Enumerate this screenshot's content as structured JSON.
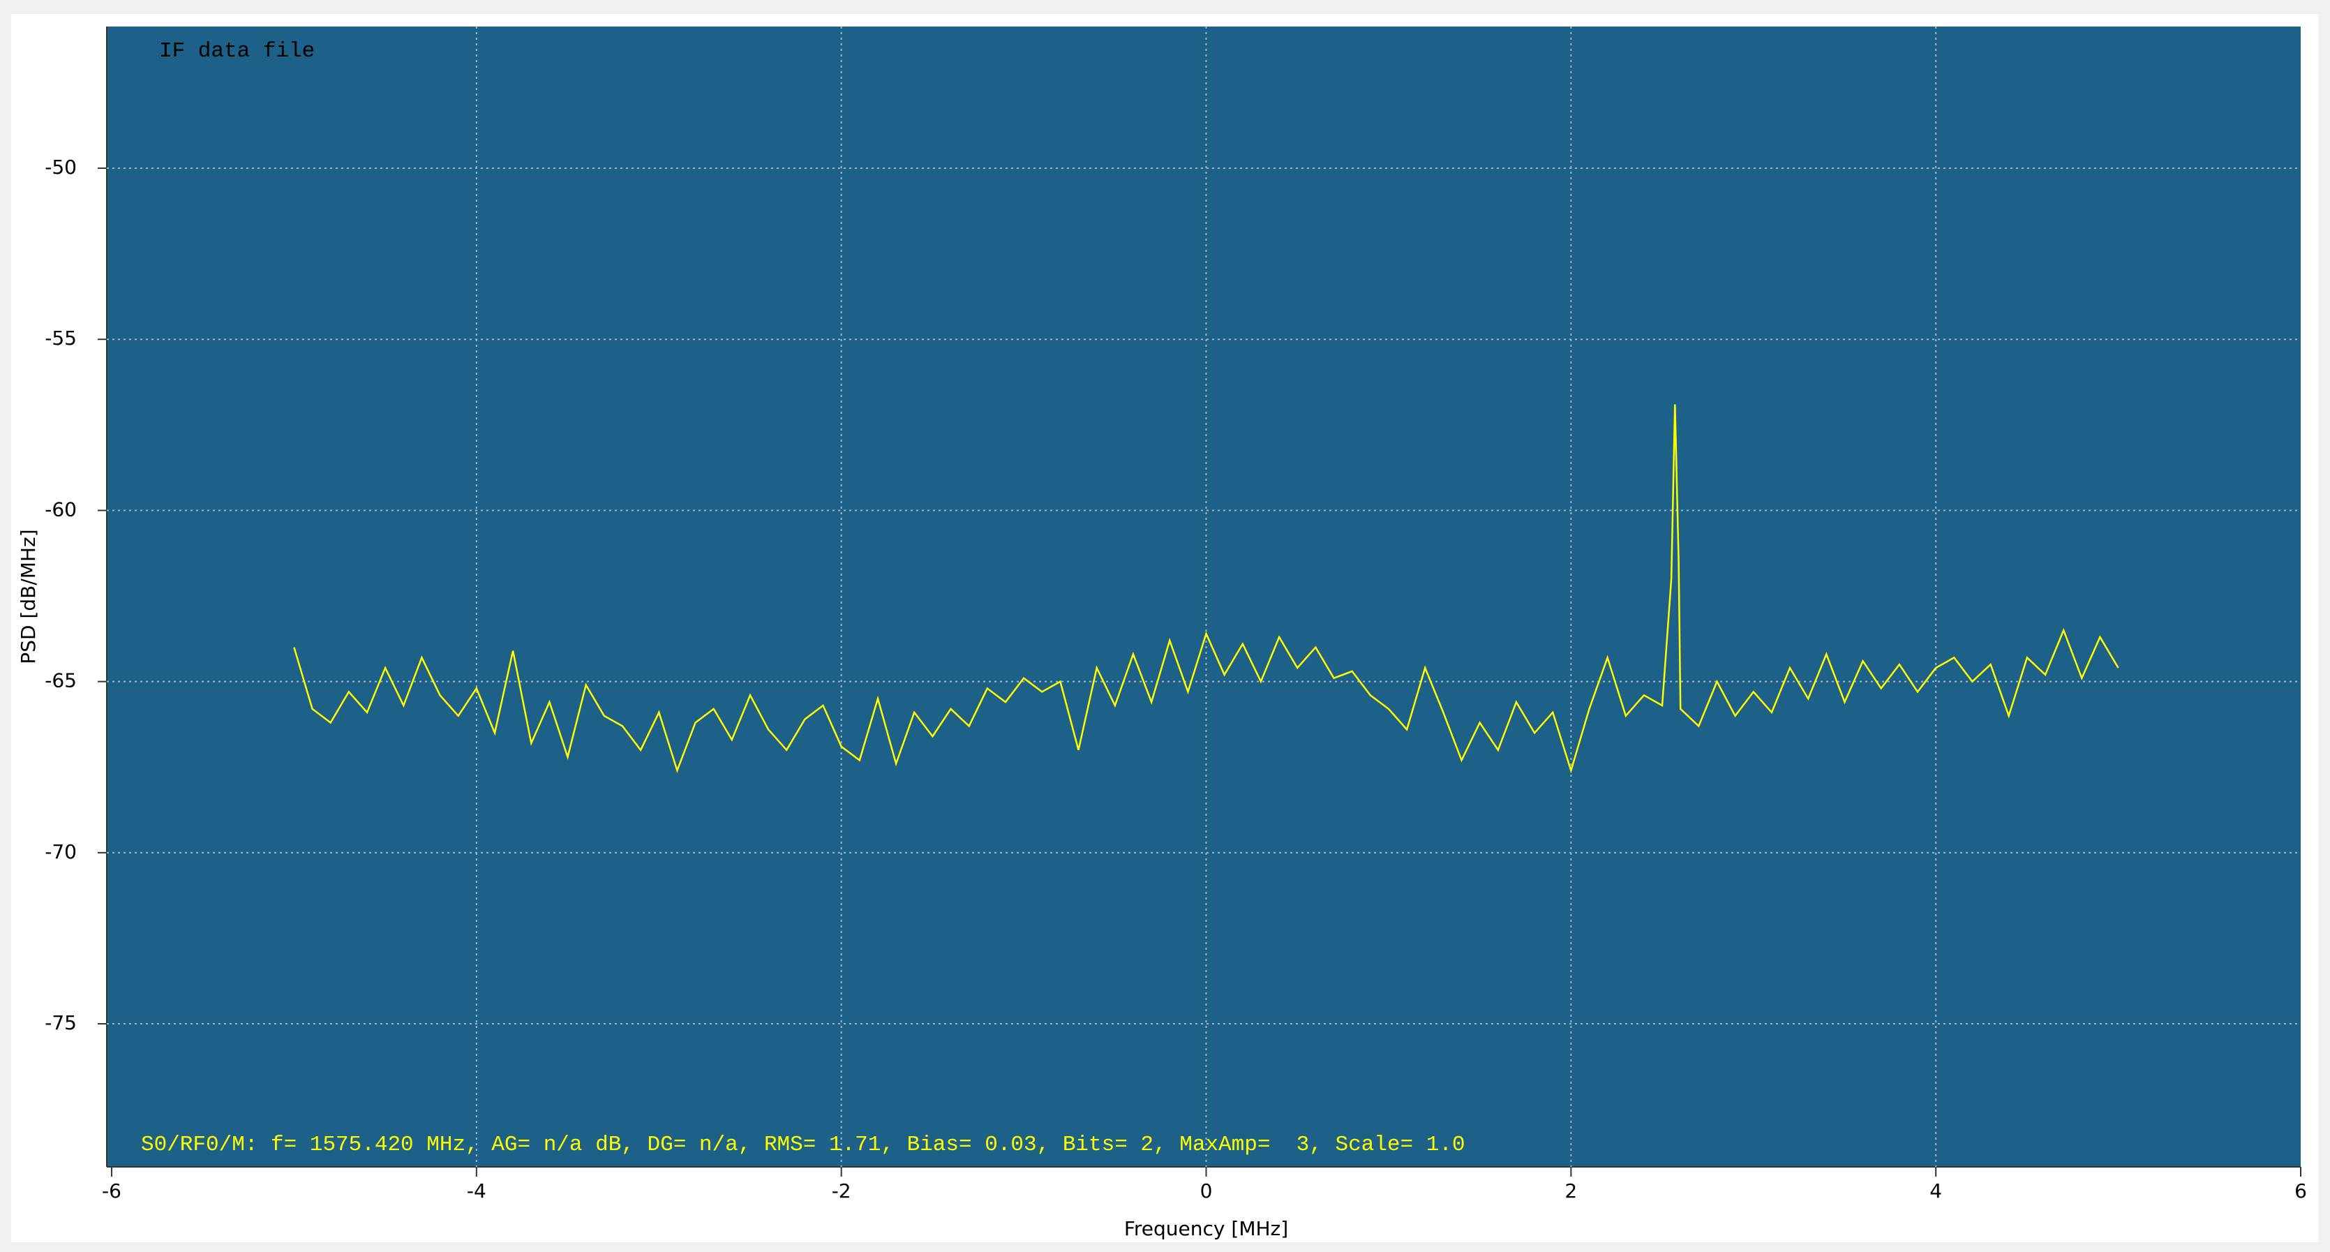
{
  "chart_data": {
    "type": "line",
    "annotation": "IF data file",
    "status_text": "S0/RF0/M: f= 1575.420 MHz, AG= n/a dB, DG= n/a, RMS= 1.71, Bias= 0.03, Bits= 2, MaxAmp=  3, Scale= 1.0",
    "x_label": "Frequency [MHz]",
    "y_label": "PSD [dB/MHz]",
    "x": [
      -5.0,
      -4.9,
      -4.8,
      -4.7,
      -4.6,
      -4.5,
      -4.4,
      -4.3,
      -4.2,
      -4.1,
      -4.0,
      -3.9,
      -3.8,
      -3.7,
      -3.6,
      -3.5,
      -3.4,
      -3.3,
      -3.2,
      -3.1,
      -3.0,
      -2.9,
      -2.8,
      -2.7,
      -2.6,
      -2.5,
      -2.4,
      -2.3,
      -2.2,
      -2.1,
      -2.0,
      -1.9,
      -1.8,
      -1.7,
      -1.6,
      -1.5,
      -1.4,
      -1.3,
      -1.2,
      -1.1,
      -1.0,
      -0.9,
      -0.8,
      -0.7,
      -0.6,
      -0.5,
      -0.4,
      -0.3,
      -0.2,
      -0.1,
      0.0,
      0.1,
      0.2,
      0.3,
      0.4,
      0.5,
      0.6,
      0.7,
      0.8,
      0.9,
      1.0,
      1.1,
      1.2,
      1.3,
      1.4,
      1.5,
      1.6,
      1.7,
      1.8,
      1.9,
      2.0,
      2.1,
      2.2,
      2.3,
      2.4,
      2.5,
      2.55,
      2.57,
      2.59,
      2.6,
      2.7,
      2.8,
      2.9,
      3.0,
      3.1,
      3.2,
      3.3,
      3.4,
      3.5,
      3.6,
      3.7,
      3.8,
      3.9,
      4.0,
      4.1,
      4.2,
      4.3,
      4.4,
      4.5,
      4.6,
      4.7,
      4.8,
      4.9,
      5.0
    ],
    "series": [
      {
        "name": "PSD",
        "color": "#ffff00",
        "values": [
          -64.0,
          -65.8,
          -66.2,
          -65.3,
          -65.9,
          -64.6,
          -65.7,
          -64.3,
          -65.4,
          -66.0,
          -65.2,
          -66.5,
          -64.1,
          -66.8,
          -65.6,
          -67.2,
          -65.1,
          -66.0,
          -66.3,
          -67.0,
          -65.9,
          -67.6,
          -66.2,
          -65.8,
          -66.7,
          -65.4,
          -66.4,
          -67.0,
          -66.1,
          -65.7,
          -66.9,
          -67.3,
          -65.5,
          -67.4,
          -65.9,
          -66.6,
          -65.8,
          -66.3,
          -65.2,
          -65.6,
          -64.9,
          -65.3,
          -65.0,
          -67.0,
          -64.6,
          -65.7,
          -64.2,
          -65.6,
          -63.8,
          -65.3,
          -63.6,
          -64.8,
          -63.9,
          -65.0,
          -63.7,
          -64.6,
          -64.0,
          -64.9,
          -64.7,
          -65.4,
          -65.8,
          -66.4,
          -64.6,
          -65.9,
          -67.3,
          -66.2,
          -67.0,
          -65.6,
          -66.5,
          -65.9,
          -67.6,
          -65.8,
          -64.3,
          -66.0,
          -65.4,
          -65.7,
          -62.0,
          -56.9,
          -61.5,
          -65.8,
          -66.3,
          -65.0,
          -66.0,
          -65.3,
          -65.9,
          -64.6,
          -65.5,
          -64.2,
          -65.6,
          -64.4,
          -65.2,
          -64.5,
          -65.3,
          -64.6,
          -64.3,
          -65.0,
          -64.5,
          -66.0,
          -64.3,
          -64.8,
          -63.5,
          -64.9,
          -63.7,
          -64.6
        ]
      }
    ],
    "xlim": [
      -6,
      6
    ],
    "xticks": [
      -6,
      -4,
      -2,
      0,
      2,
      4,
      6
    ],
    "ylim": [
      -79.18,
      -45.86
    ],
    "yticks": [
      -50,
      -55,
      -60,
      -65,
      -70,
      -75
    ],
    "grid": true,
    "background": "#1d6189"
  }
}
